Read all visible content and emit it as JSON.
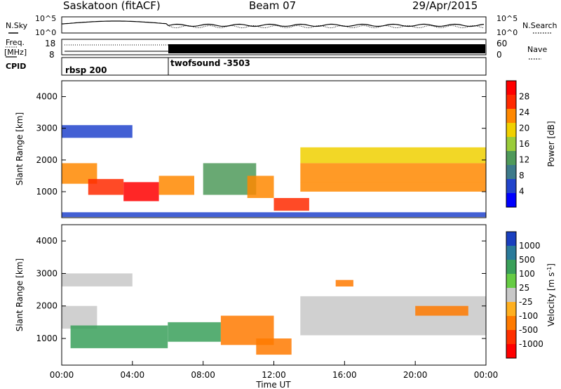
{
  "header": {
    "station": "Saskatoon (fitACF)",
    "beam": "Beam 07",
    "date": "29/Apr/2015"
  },
  "noise_panel": {
    "left_label": "N.Sky",
    "right_label": "N.Search",
    "ticks": [
      "10^5",
      "10^0"
    ],
    "right_ticks": [
      "10^5",
      "10^0"
    ]
  },
  "freq_panel": {
    "left_label_1": "Freq.",
    "left_label_2": "[MHz]",
    "left_ticks": [
      "18",
      "8"
    ],
    "right_label": "Nave",
    "right_ticks": [
      "60",
      "0"
    ]
  },
  "cpid_panel": {
    "label": "CPID",
    "segments": [
      {
        "label": "rbsp 200",
        "start_hour": 0
      },
      {
        "label": "twofsound -3503",
        "start_hour": 6.0
      }
    ]
  },
  "chart_data": [
    {
      "type": "heatmap",
      "parameter": "power",
      "ylabel": "Slant Range [km]",
      "ylim": [
        180,
        4500
      ],
      "yticks": [
        1000,
        2000,
        3000,
        4000
      ],
      "xlim": [
        0,
        24
      ],
      "colorbar": {
        "label": "Power [dB]",
        "range": [
          0,
          32
        ],
        "ticks": [
          4,
          8,
          12,
          16,
          20,
          24,
          28
        ],
        "colors": [
          "#0000ff",
          "#2244cc",
          "#3d7a8a",
          "#4f9a5a",
          "#9acc3a",
          "#f0d000",
          "#ff8800",
          "#ff2a00",
          "#ff0000"
        ]
      },
      "regions": [
        {
          "h0": 0.0,
          "h1": 2.0,
          "r0": 1250,
          "r1": 1900,
          "value": 22
        },
        {
          "h0": 1.5,
          "h1": 3.5,
          "r0": 900,
          "r1": 1400,
          "value": 28
        },
        {
          "h0": 3.5,
          "h1": 5.5,
          "r0": 700,
          "r1": 1300,
          "value": 30
        },
        {
          "h0": 0.0,
          "h1": 4.0,
          "r0": 2700,
          "r1": 3100,
          "value": 6
        },
        {
          "h0": 5.5,
          "h1": 7.5,
          "r0": 900,
          "r1": 1500,
          "value": 24
        },
        {
          "h0": 8.0,
          "h1": 11.0,
          "r0": 900,
          "r1": 1900,
          "value": 14
        },
        {
          "h0": 10.5,
          "h1": 12.0,
          "r0": 800,
          "r1": 1500,
          "value": 24
        },
        {
          "h0": 12.0,
          "h1": 14.0,
          "r0": 400,
          "r1": 800,
          "value": 26
        },
        {
          "h0": 13.5,
          "h1": 24.0,
          "r0": 1900,
          "r1": 2400,
          "value": 18
        },
        {
          "h0": 13.5,
          "h1": 24.0,
          "r0": 1300,
          "r1": 1900,
          "value": 22
        },
        {
          "h0": 13.5,
          "h1": 24.0,
          "r0": 1000,
          "r1": 1300,
          "value": 24
        },
        {
          "h0": 0.0,
          "h1": 24.0,
          "r0": 200,
          "r1": 350,
          "value": 6
        }
      ]
    },
    {
      "type": "heatmap",
      "parameter": "velocity",
      "ylabel": "Slant Range [km]",
      "ylim": [
        180,
        4500
      ],
      "yticks": [
        1000,
        2000,
        3000,
        4000
      ],
      "xlim": [
        0,
        24
      ],
      "colorbar": {
        "label": "Velocity [m s^-1]",
        "ticks": [
          "1000",
          "500",
          "100",
          "25",
          "-25",
          "-100",
          "-500",
          "-1000"
        ],
        "colors": [
          "#1a3fbf",
          "#2a7a9a",
          "#3aa05a",
          "#66cc44",
          "#c8c8c8",
          "#ffb020",
          "#ff7a00",
          "#ff3000",
          "#ff0000"
        ]
      },
      "regions": [
        {
          "h0": 0.0,
          "h1": 2.0,
          "r0": 1300,
          "r1": 2000,
          "value": 0
        },
        {
          "h0": 0.5,
          "h1": 6.0,
          "r0": 700,
          "r1": 1400,
          "value": 60
        },
        {
          "h0": 0.0,
          "h1": 4.0,
          "r0": 2600,
          "r1": 3000,
          "value": 0
        },
        {
          "h0": 6.0,
          "h1": 9.0,
          "r0": 900,
          "r1": 1500,
          "value": 60
        },
        {
          "h0": 9.0,
          "h1": 12.0,
          "r0": 800,
          "r1": 1700,
          "value": -300
        },
        {
          "h0": 11.0,
          "h1": 13.0,
          "r0": 500,
          "r1": 1000,
          "value": -150
        },
        {
          "h0": 13.5,
          "h1": 24.0,
          "r0": 1100,
          "r1": 2300,
          "value": 0
        },
        {
          "h0": 15.5,
          "h1": 16.5,
          "r0": 2600,
          "r1": 2800,
          "value": -300
        },
        {
          "h0": 20.0,
          "h1": 23.0,
          "r0": 1700,
          "r1": 2000,
          "value": -200
        }
      ]
    }
  ],
  "xaxis": {
    "ticks": [
      "00:00",
      "04:00",
      "08:00",
      "12:00",
      "16:00",
      "20:00",
      "00:00"
    ],
    "label": "Time UT"
  }
}
